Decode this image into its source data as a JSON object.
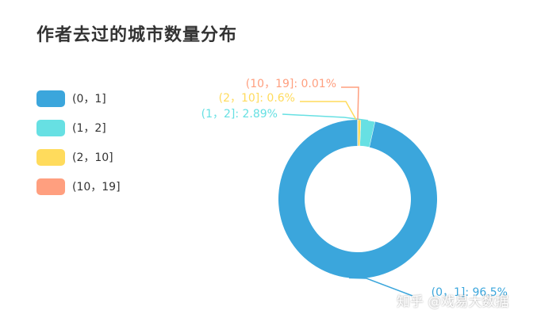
{
  "title": "作者去过的城市数量分布",
  "watermark": "知乎 @戏易大数据",
  "legend": [
    {
      "label": "(0，1]",
      "color": "#3ba6dc"
    },
    {
      "label": "(1，2]",
      "color": "#67e0e3"
    },
    {
      "label": "(2，10]",
      "color": "#ffdb5c"
    },
    {
      "label": "(10，19]",
      "color": "#ff9f7f"
    }
  ],
  "chart_data": {
    "type": "pie",
    "title": "作者去过的城市数量分布",
    "categories": [
      "(0，1]",
      "(1，2]",
      "(2，10]",
      "(10，19]"
    ],
    "values": [
      96.5,
      2.89,
      0.6,
      0.01
    ],
    "colors": [
      "#3ba6dc",
      "#67e0e3",
      "#ffdb5c",
      "#ff9f7f"
    ],
    "labels": [
      "(0，1]: 96.5%",
      "(1，2]: 2.89%",
      "(2，10]: 0.6%",
      "(10，19]: 0.01%"
    ],
    "donut": true,
    "legend_position": "left"
  }
}
